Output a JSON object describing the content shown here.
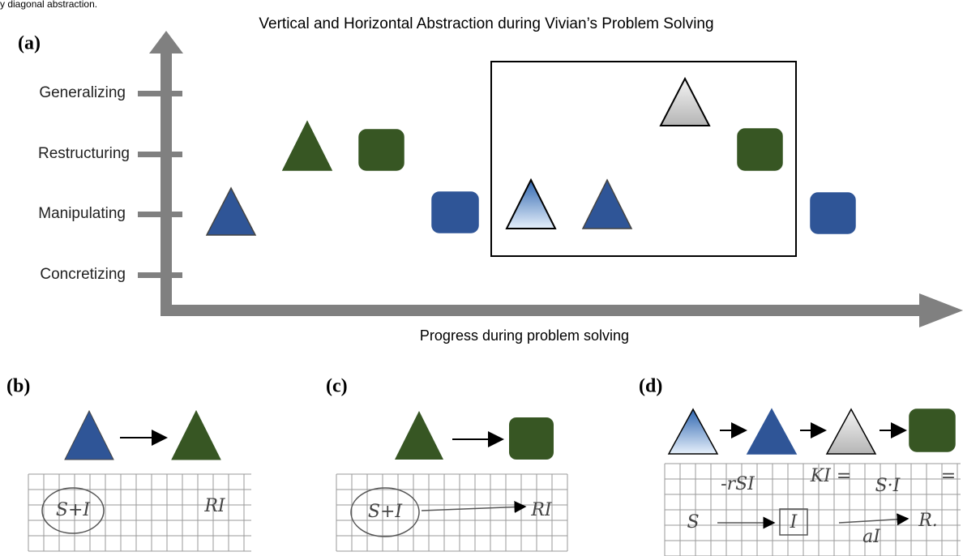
{
  "header": {
    "caption_fragment": "y diagonal abstraction."
  },
  "panel_a": {
    "label": "(a)",
    "title": "Vertical and Horizontal Abstraction during Vivian’s Problem Solving",
    "levels": [
      "Generalizing",
      "Restructuring",
      "Manipulating",
      "Concretizing"
    ],
    "x_label": "Progress during problem solving"
  },
  "panel_b": {
    "label": "(b)",
    "handwriting": [
      "S+I",
      "RI"
    ]
  },
  "panel_c": {
    "label": "(c)",
    "handwriting": [
      "S+I",
      "RI"
    ]
  },
  "panel_d": {
    "label": "(d)",
    "handwriting": [
      "-rSI",
      "KI =",
      "S·I",
      "=",
      "S",
      "I",
      "aI",
      "R."
    ]
  }
}
